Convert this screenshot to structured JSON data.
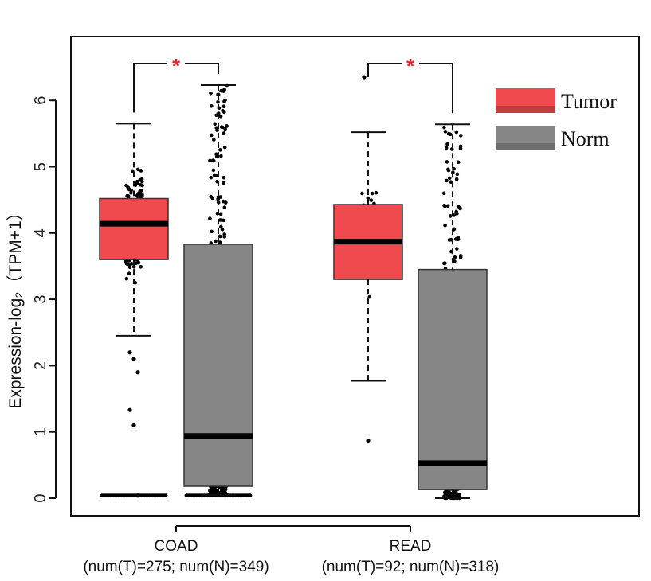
{
  "chart_data": {
    "type": "box",
    "ylabel": "Expression-log₂（TPM+1）",
    "ylim": [
      0,
      7
    ],
    "yticks": [
      0,
      1,
      2,
      3,
      4,
      5,
      6
    ],
    "categories": [
      {
        "name": "COAD",
        "counts": "(num(T)=275; num(N)=349)"
      },
      {
        "name": "READ",
        "counts": "(num(T)=92; num(N)=318)"
      }
    ],
    "legend": [
      {
        "name": "Tumor",
        "color": "#ef4a4e"
      },
      {
        "name": "Norm",
        "color": "#868686"
      }
    ],
    "significance": [
      "*",
      "*"
    ],
    "boxes": [
      {
        "category": "COAD",
        "group": "Tumor",
        "whisker_low": 2.45,
        "q1": 3.6,
        "median": 4.14,
        "q3": 4.52,
        "whisker_high": 5.65
      },
      {
        "category": "COAD",
        "group": "Norm",
        "whisker_low": 0.05,
        "q1": 0.18,
        "median": 0.94,
        "q3": 3.83,
        "whisker_high": 6.23
      },
      {
        "category": "READ",
        "group": "Tumor",
        "whisker_low": 1.77,
        "q1": 3.3,
        "median": 3.87,
        "q3": 4.43,
        "whisker_high": 5.52
      },
      {
        "category": "READ",
        "group": "Norm",
        "whisker_low": 0.0,
        "q1": 0.13,
        "median": 0.53,
        "q3": 3.45,
        "whisker_high": 5.64
      }
    ],
    "outliers": [
      {
        "category": "COAD",
        "group": "Tumor",
        "values": [
          2.2,
          2.1,
          1.9,
          1.33,
          1.1,
          0.04
        ]
      },
      {
        "category": "READ",
        "group": "Tumor",
        "values": [
          6.35,
          0.87
        ]
      }
    ]
  }
}
